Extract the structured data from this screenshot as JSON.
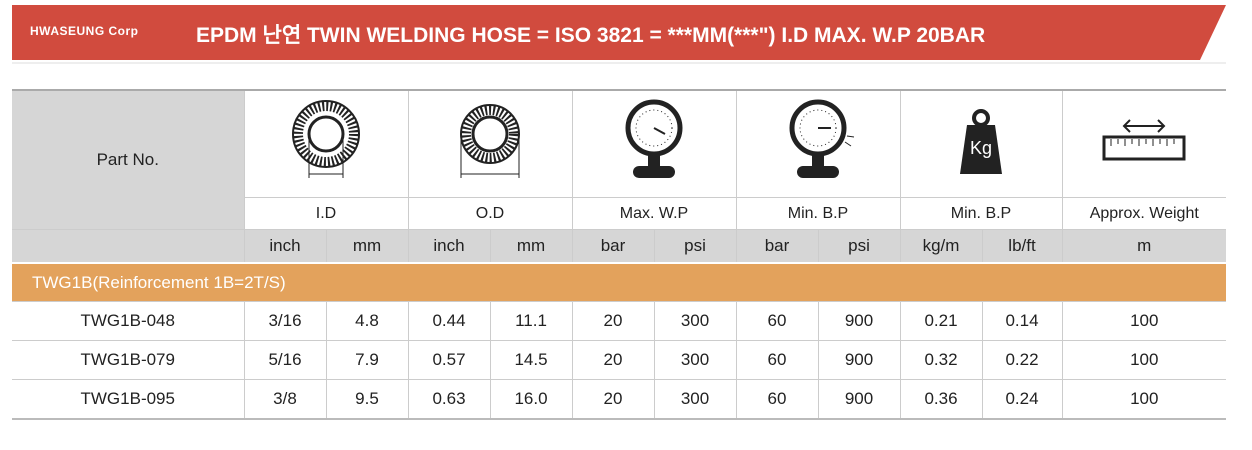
{
  "header": {
    "brand": "HWASEUNG Corp",
    "title": "EPDM 난연 TWIN WELDING HOSE = ISO 3821 = ***MM(***\") I.D MAX. W.P 20BAR"
  },
  "table": {
    "part_no_header": "Part No.",
    "icons": {
      "weight_text": "Kg"
    },
    "groups": [
      "I.D",
      "O.D",
      "Max. W.P",
      "Min. B.P",
      "Min. B.P",
      "Approx. Weight"
    ],
    "units": [
      "inch",
      "mm",
      "inch",
      "mm",
      "bar",
      "psi",
      "bar",
      "psi",
      "kg/m",
      "lb/ft",
      "m"
    ],
    "section": "TWG1B(Reinforcement 1B=2T/S)",
    "rows": [
      [
        "TWG1B-048",
        "3/16",
        "4.8",
        "0.44",
        "11.1",
        "20",
        "300",
        "60",
        "900",
        "0.21",
        "0.14",
        "100"
      ],
      [
        "TWG1B-079",
        "5/16",
        "7.9",
        "0.57",
        "14.5",
        "20",
        "300",
        "60",
        "900",
        "0.32",
        "0.22",
        "100"
      ],
      [
        "TWG1B-095",
        "3/8",
        "9.5",
        "0.63",
        "16.0",
        "20",
        "300",
        "60",
        "900",
        "0.36",
        "0.24",
        "100"
      ]
    ]
  }
}
